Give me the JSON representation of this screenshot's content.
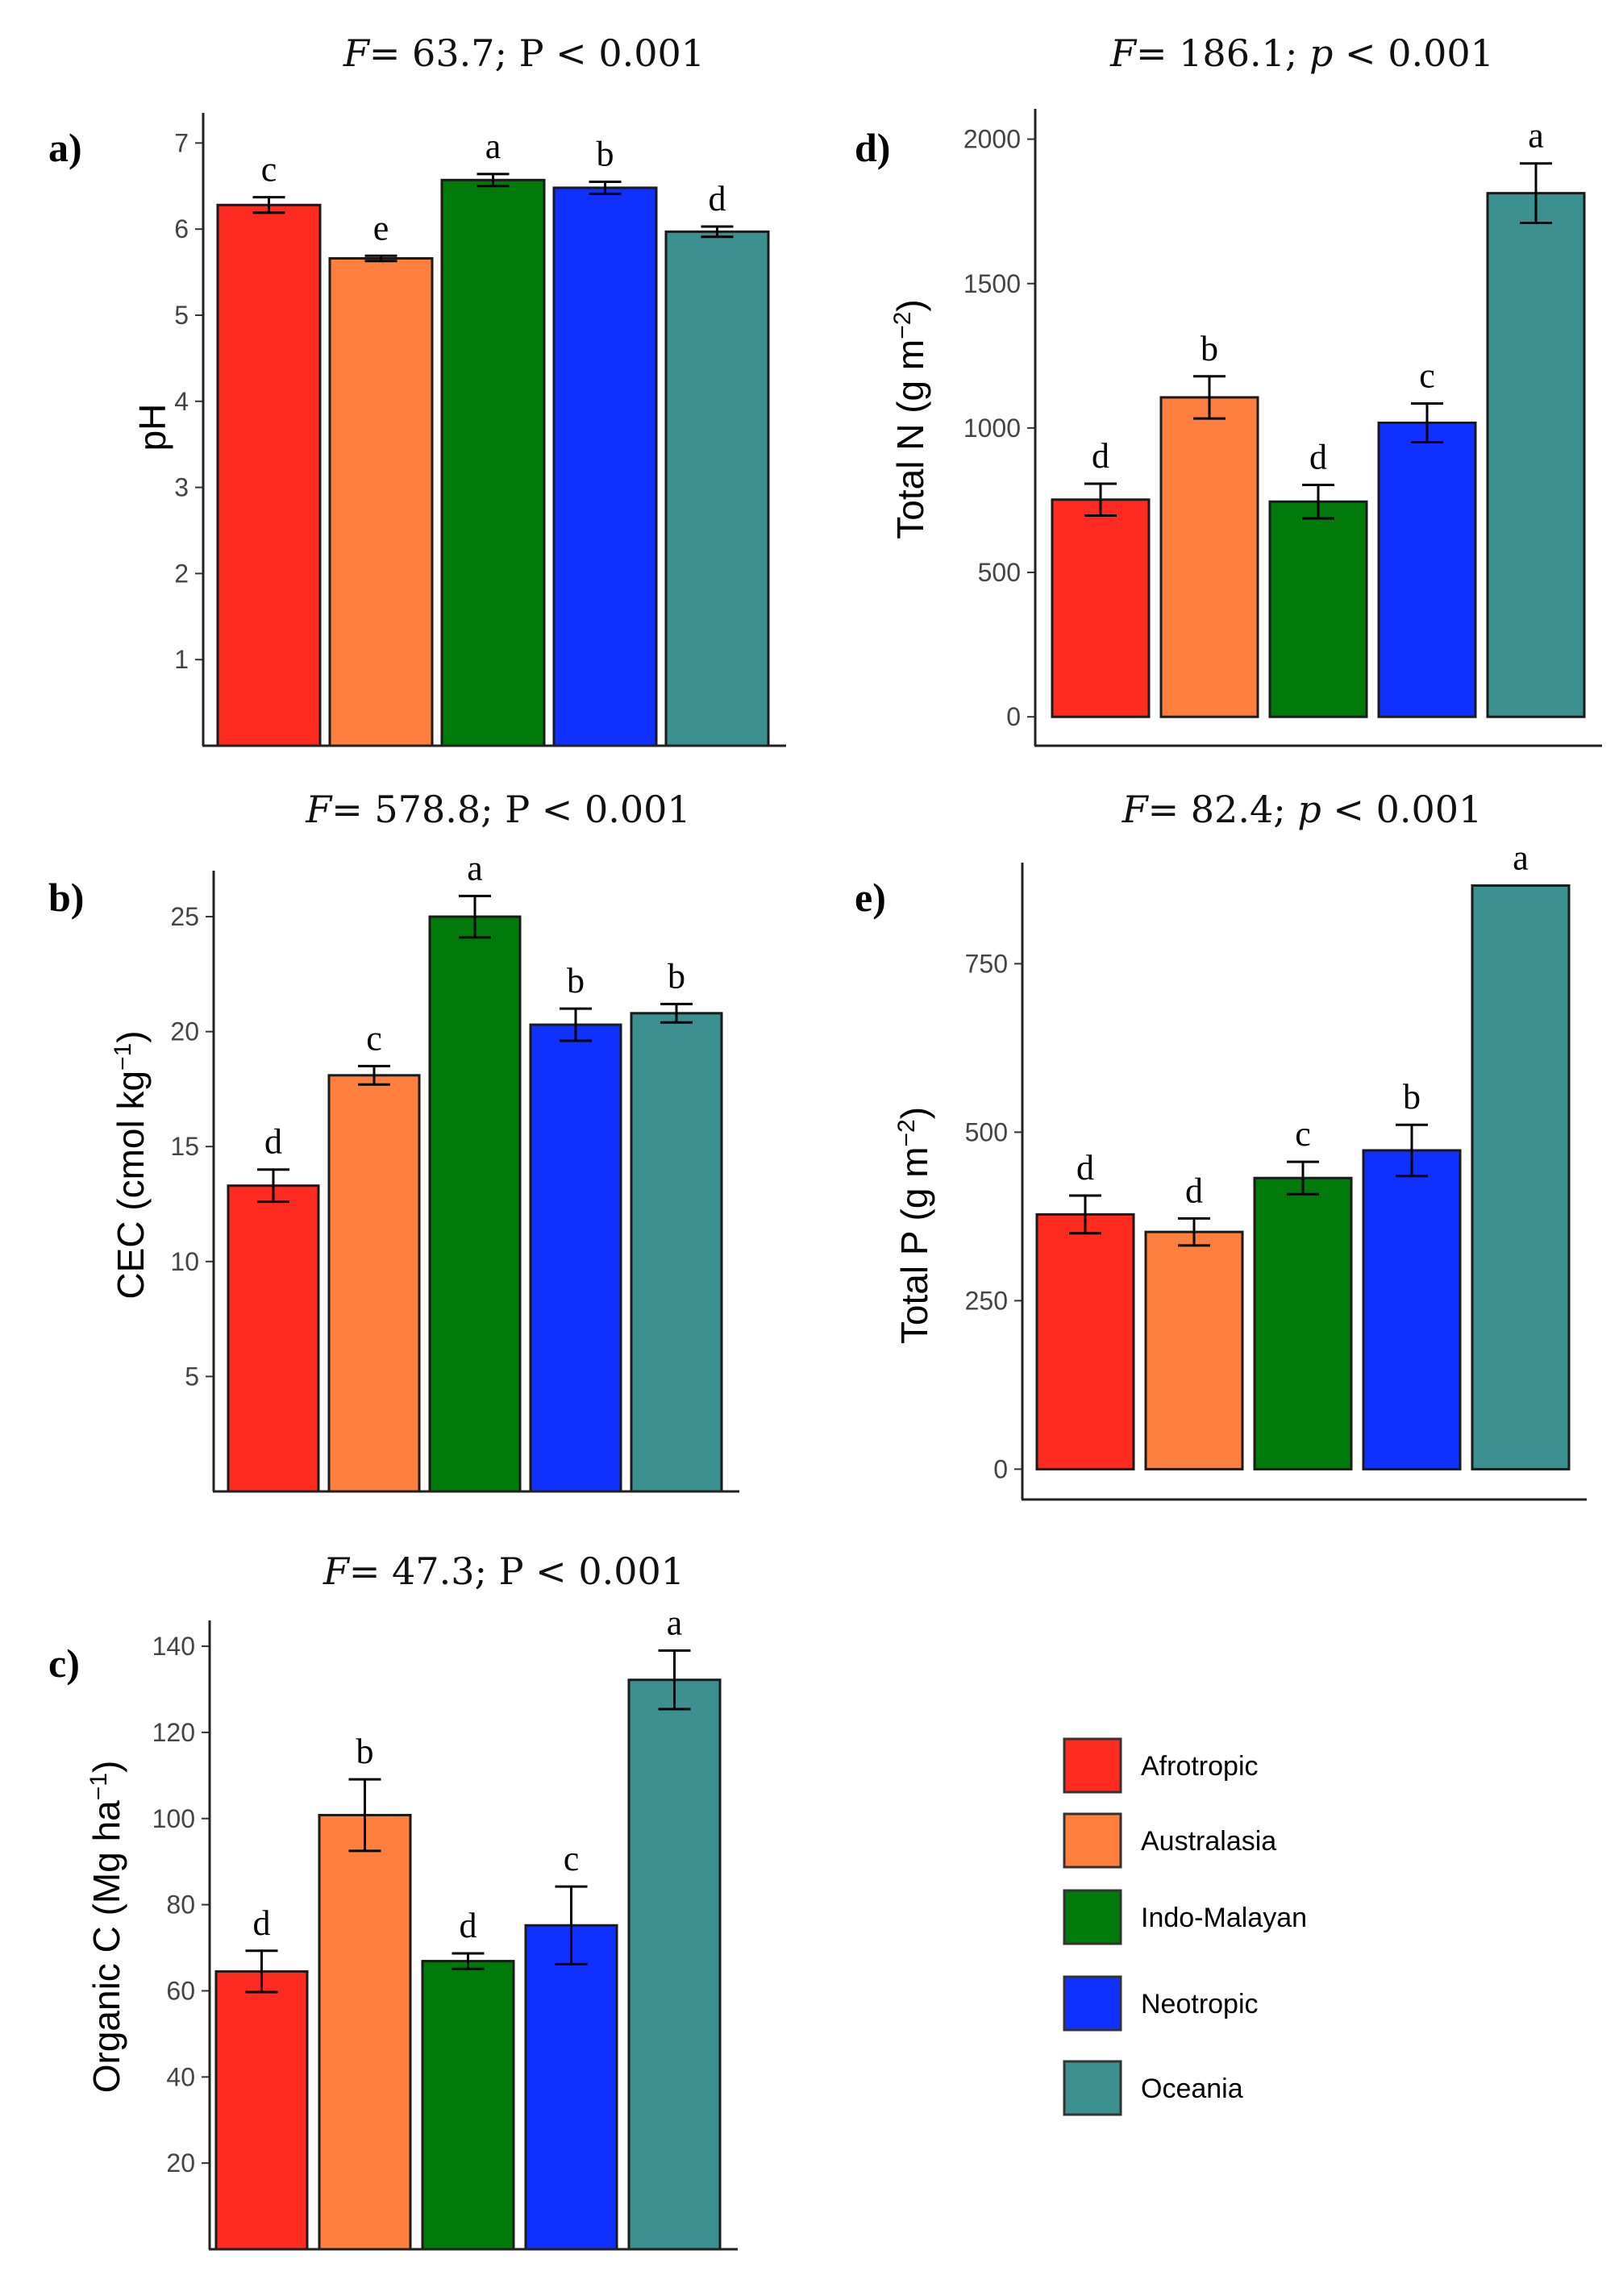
{
  "legend": [
    {
      "name": "Afrotropic",
      "color": "#FF2A20"
    },
    {
      "name": "Australasia",
      "color": "#FF7F3F"
    },
    {
      "name": "Indo-Malayan",
      "color": "#007A0A"
    },
    {
      "name": "Neotropic",
      "color": "#1030FF"
    },
    {
      "name": "Oceania",
      "color": "#3C9090"
    }
  ],
  "chart_data": [
    {
      "panel": "a)",
      "type": "bar",
      "title_F": "F",
      "title_rest": "= 63.7; P < 0.001",
      "ylabel": "pH",
      "ylabel_sup": "",
      "ylabel_end": "",
      "categories": [
        "Afrotropic",
        "Australasia",
        "Indo-Malayan",
        "Neotropic",
        "Oceania"
      ],
      "values": [
        6.28,
        5.66,
        6.57,
        6.48,
        5.97
      ],
      "errors": [
        0.09,
        0.03,
        0.07,
        0.07,
        0.06
      ],
      "letters": [
        "c",
        "e",
        "a",
        "b",
        "d"
      ],
      "ylim": [
        0,
        7.35
      ],
      "ticks": [
        1,
        2,
        3,
        4,
        5,
        6,
        7
      ]
    },
    {
      "panel": "b)",
      "type": "bar",
      "title_F": "F",
      "title_rest": "= 578.8; P < 0.001",
      "ylabel": "CEC (cmol kg",
      "ylabel_sup": "−1",
      "ylabel_end": ")",
      "categories": [
        "Afrotropic",
        "Australasia",
        "Indo-Malayan",
        "Neotropic",
        "Oceania"
      ],
      "values": [
        13.3,
        18.1,
        25.0,
        20.3,
        20.8
      ],
      "errors": [
        0.7,
        0.4,
        0.9,
        0.7,
        0.4
      ],
      "letters": [
        "d",
        "c",
        "a",
        "b",
        "b"
      ],
      "ylim": [
        0,
        27.0
      ],
      "ticks": [
        5,
        10,
        15,
        20,
        25
      ]
    },
    {
      "panel": "c)",
      "type": "bar",
      "title_F": "F",
      "title_rest": "= 47.3; P < 0.001",
      "ylabel": "Organic C (Mg ha",
      "ylabel_sup": "−1",
      "ylabel_end": ")",
      "categories": [
        "Afrotropic",
        "Australasia",
        "Indo-Malayan",
        "Neotropic",
        "Oceania"
      ],
      "values": [
        64.5,
        100.8,
        66.9,
        75.2,
        132.2
      ],
      "errors": [
        4.8,
        8.3,
        1.8,
        9.0,
        6.8
      ],
      "letters": [
        "d",
        "b",
        "d",
        "c",
        "a"
      ],
      "ylim": [
        0,
        146
      ],
      "ticks": [
        20,
        40,
        60,
        80,
        100,
        120,
        140
      ]
    },
    {
      "panel": "d)",
      "type": "bar",
      "title_F": "F",
      "title_rest": "= 186.1; ",
      "title_p": "p",
      "title_end": " < 0.001",
      "ylabel": "Total N (g m",
      "ylabel_sup": "−2",
      "ylabel_end": ")",
      "categories": [
        "Afrotropic",
        "Australasia",
        "Indo-Malayan",
        "Neotropic",
        "Oceania"
      ],
      "values": [
        752,
        1106,
        745,
        1018,
        1813
      ],
      "errors": [
        55,
        73,
        58,
        67,
        103
      ],
      "letters": [
        "d",
        "b",
        "d",
        "c",
        "a"
      ],
      "ylim": [
        -100,
        2105
      ],
      "ticks": [
        0,
        500,
        1000,
        1500,
        2000
      ]
    },
    {
      "panel": "e)",
      "type": "bar",
      "title_F": "F",
      "title_rest": "= 82.4; ",
      "title_p": "p",
      "title_end": " < 0.001",
      "ylabel": "Total P (g m",
      "ylabel_sup": "−2",
      "ylabel_end": ")",
      "categories": [
        "Afrotropic",
        "Australasia",
        "Indo-Malayan",
        "Neotropic",
        "Oceania"
      ],
      "values": [
        378,
        352,
        432,
        473,
        866
      ],
      "errors": [
        28,
        20,
        24,
        38,
        0
      ],
      "letters": [
        "d",
        "d",
        "c",
        "b",
        "a"
      ],
      "ylim": [
        -45,
        900
      ],
      "ticks": [
        0,
        250,
        500,
        750
      ]
    }
  ]
}
